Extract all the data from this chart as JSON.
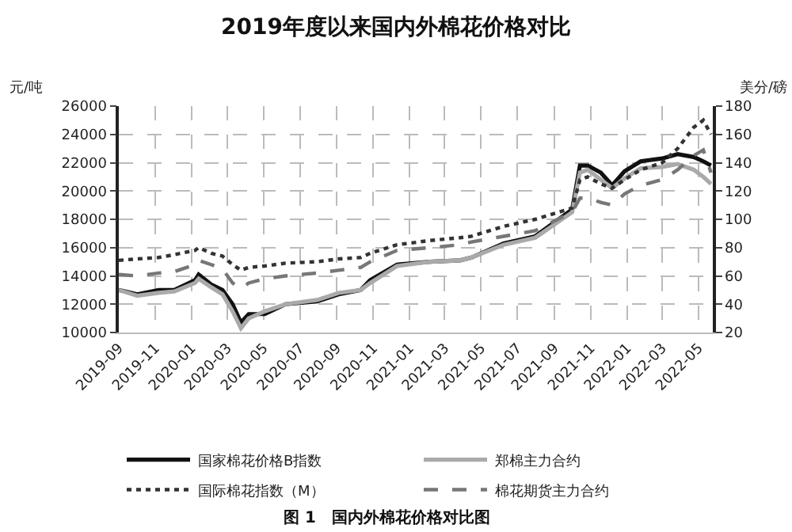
{
  "chart_data": {
    "type": "line",
    "title": "2019年度以来国内外棉花价格对比",
    "ylabel": "元/吨",
    "y2label": "美分/磅",
    "x": [
      "2019-09-01",
      "2019-10-02",
      "2019-11-07",
      "2019-12-03",
      "2020-01-07",
      "2020-01-13",
      "2020-02-03",
      "2020-02-22",
      "2020-03-10",
      "2020-03-24",
      "2020-04-06",
      "2020-05-03",
      "2020-06-07",
      "2020-07-30",
      "2020-09-04",
      "2020-10-11",
      "2020-10-27",
      "2020-12-11",
      "2021-02-04",
      "2021-03-27",
      "2021-04-15",
      "2021-06-08",
      "2021-07-31",
      "2021-10-01",
      "2021-10-14",
      "2021-10-27",
      "2021-11-18",
      "2021-12-07",
      "2021-12-28",
      "2022-01-24",
      "2022-03-01",
      "2022-03-27",
      "2022-04-23",
      "2022-05-09",
      "2022-05-22"
    ],
    "series": [
      {
        "name": "国家棉花价格B指数",
        "color": "#111111",
        "line_style": "solid",
        "values": [
          13000,
          12700,
          13000,
          13000,
          13700,
          14100,
          13400,
          13000,
          12000,
          10700,
          11300,
          11300,
          12000,
          12200,
          12700,
          13000,
          13700,
          14800,
          15000,
          15100,
          15300,
          16300,
          16800,
          18700,
          21800,
          21800,
          21300,
          20400,
          21400,
          22100,
          22300,
          22600,
          22400,
          22100,
          21800
        ]
      },
      {
        "name": "郑棉主力合约",
        "color": "#aaaaaa",
        "line_style": "solid",
        "values": [
          13000,
          12600,
          12800,
          12900,
          13500,
          13800,
          13200,
          12700,
          11500,
          10300,
          11000,
          11500,
          12000,
          12300,
          12800,
          13000,
          13500,
          14700,
          15000,
          15100,
          15300,
          16200,
          16700,
          18500,
          21300,
          21500,
          20800,
          20200,
          20900,
          21600,
          21700,
          21900,
          21500,
          21000,
          20500
        ]
      },
      {
        "name": "国际棉花指数（M）",
        "color": "#333333",
        "line_style": "dotted",
        "axis": "y2",
        "values": [
          71,
          72,
          73,
          75,
          78,
          80,
          76,
          74,
          68,
          64,
          66,
          67,
          69,
          70,
          72,
          73,
          76,
          82,
          85,
          87,
          88,
          95,
          100,
          108,
          128,
          130,
          125,
          122,
          128,
          135,
          140,
          150,
          165,
          170,
          160
        ]
      },
      {
        "name": "棉花期货主力合约",
        "color": "#777777",
        "line_style": "dashed",
        "axis": "y2",
        "values": [
          61,
          60,
          62,
          63,
          68,
          71,
          68,
          65,
          55,
          51,
          55,
          58,
          60,
          62,
          64,
          66,
          70,
          78,
          80,
          82,
          84,
          88,
          92,
          105,
          115,
          115,
          112,
          110,
          118,
          124,
          128,
          135,
          145,
          149,
          133
        ]
      }
    ],
    "xlim": [
      "2019-09-01",
      "2022-05-25"
    ],
    "xticks": [
      "2019-09",
      "2019-11",
      "2020-01",
      "2020-03",
      "2020-05",
      "2020-07",
      "2020-09",
      "2020-11",
      "2021-01",
      "2021-03",
      "2021-05",
      "2021-07",
      "2021-09",
      "2021-11",
      "2022-01",
      "2022-03",
      "2022-05"
    ],
    "ylim": [
      10000,
      26000
    ],
    "yticks": [
      10000,
      12000,
      14000,
      16000,
      18000,
      20000,
      22000,
      24000,
      26000
    ],
    "y2lim": [
      20,
      180
    ],
    "y2ticks": [
      20,
      40,
      60,
      80,
      100,
      120,
      140,
      160,
      180
    ],
    "grid": true,
    "legend": "bottom",
    "marker": "none",
    "annotations": [
      "图 1　国内外棉花价格对比图"
    ]
  }
}
